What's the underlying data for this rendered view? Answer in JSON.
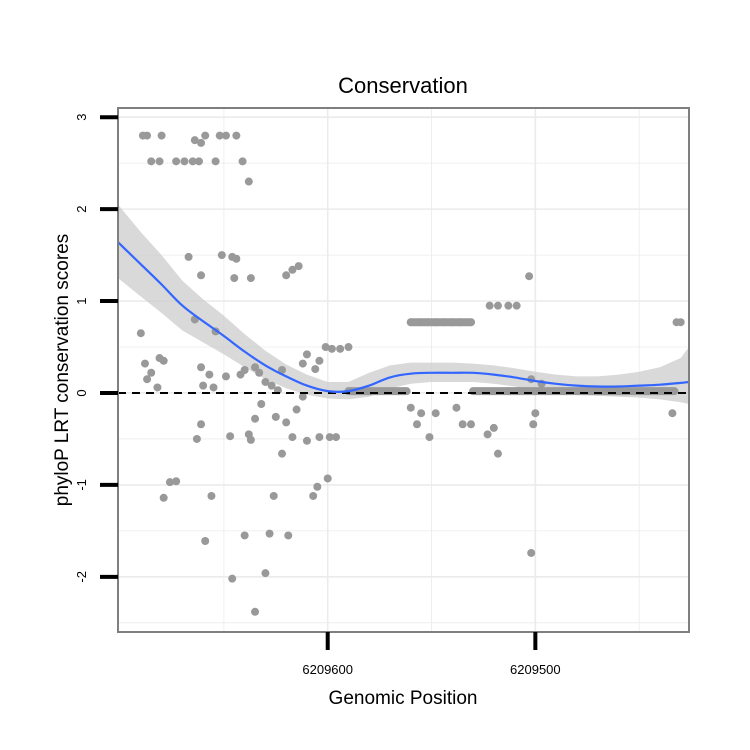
{
  "chart_data": {
    "type": "scatter",
    "title": "Conservation",
    "xlabel": "Genomic Position",
    "ylabel": "phyloP LRT conservation scores",
    "x_reversed": true,
    "xlim": [
      6209701,
      6209426
    ],
    "ylim": [
      -2.6,
      3.1
    ],
    "x_ticks": [
      6209600,
      6209500
    ],
    "x_tick_labels": [
      "6209600",
      "6209500"
    ],
    "y_ticks": [
      -2,
      -1,
      0,
      1,
      2,
      3
    ],
    "y_tick_labels": [
      "-2",
      "-1",
      "0",
      "1",
      "2",
      "3"
    ],
    "grid": true,
    "reference_line": {
      "y": 0,
      "style": "dashed"
    },
    "colors": {
      "points": "#999999",
      "smooth_line": "#3366ff",
      "confidence_band": "#cccccc",
      "grid": "#ebebeb",
      "panel_border": "#7f7f7f",
      "reference_line": "#000000"
    },
    "series": [
      {
        "name": "phyloP scores",
        "kind": "points",
        "points": [
          [
            6209689,
            2.8
          ],
          [
            6209687,
            2.8
          ],
          [
            6209680,
            2.8
          ],
          [
            6209685,
            2.52
          ],
          [
            6209681,
            2.52
          ],
          [
            6209673,
            2.52
          ],
          [
            6209669,
            2.52
          ],
          [
            6209665,
            2.52
          ],
          [
            6209664,
            2.75
          ],
          [
            6209661,
            2.72
          ],
          [
            6209659,
            2.8
          ],
          [
            6209652,
            2.8
          ],
          [
            6209649,
            2.8
          ],
          [
            6209644,
            2.8
          ],
          [
            6209662,
            2.52
          ],
          [
            6209654,
            2.52
          ],
          [
            6209641,
            2.52
          ],
          [
            6209638,
            2.3
          ],
          [
            6209690,
            0.65
          ],
          [
            6209688,
            0.32
          ],
          [
            6209687,
            0.15
          ],
          [
            6209685,
            0.22
          ],
          [
            6209682,
            0.06
          ],
          [
            6209681,
            0.38
          ],
          [
            6209679,
            0.35
          ],
          [
            6209667,
            1.48
          ],
          [
            6209664,
            0.8
          ],
          [
            6209661,
            1.28
          ],
          [
            6209661,
            0.28
          ],
          [
            6209660,
            0.08
          ],
          [
            6209657,
            0.2
          ],
          [
            6209655,
            0.06
          ],
          [
            6209654,
            0.67
          ],
          [
            6209651,
            1.5
          ],
          [
            6209649,
            0.18
          ],
          [
            6209646,
            1.48
          ],
          [
            6209644,
            1.46
          ],
          [
            6209645,
            1.25
          ],
          [
            6209642,
            0.2
          ],
          [
            6209640,
            0.25
          ],
          [
            6209637,
            1.25
          ],
          [
            6209635,
            0.28
          ],
          [
            6209633,
            0.22
          ],
          [
            6209630,
            0.12
          ],
          [
            6209627,
            0.08
          ],
          [
            6209624,
            0.03
          ],
          [
            6209622,
            0.25
          ],
          [
            6209620,
            1.28
          ],
          [
            6209617,
            1.34
          ],
          [
            6209614,
            1.38
          ],
          [
            6209612,
            0.32
          ],
          [
            6209610,
            0.42
          ],
          [
            6209606,
            0.26
          ],
          [
            6209604,
            0.35
          ],
          [
            6209601,
            0.5
          ],
          [
            6209598,
            0.48
          ],
          [
            6209594,
            0.48
          ],
          [
            6209590,
            0.5
          ],
          [
            6209679,
            -1.14
          ],
          [
            6209676,
            -0.97
          ],
          [
            6209673,
            -0.96
          ],
          [
            6209663,
            -0.5
          ],
          [
            6209661,
            -0.34
          ],
          [
            6209659,
            -1.61
          ],
          [
            6209656,
            -1.12
          ],
          [
            6209647,
            -0.47
          ],
          [
            6209646,
            -2.02
          ],
          [
            6209640,
            -1.55
          ],
          [
            6209638,
            -0.45
          ],
          [
            6209637,
            -0.51
          ],
          [
            6209635,
            -0.28
          ],
          [
            6209635,
            -2.38
          ],
          [
            6209632,
            -0.12
          ],
          [
            6209630,
            -1.96
          ],
          [
            6209628,
            -1.53
          ],
          [
            6209626,
            -1.12
          ],
          [
            6209625,
            -0.26
          ],
          [
            6209622,
            -0.66
          ],
          [
            6209620,
            -0.32
          ],
          [
            6209619,
            -1.55
          ],
          [
            6209617,
            -0.48
          ],
          [
            6209615,
            -0.18
          ],
          [
            6209612,
            -0.04
          ],
          [
            6209610,
            -0.52
          ],
          [
            6209607,
            -1.12
          ],
          [
            6209605,
            -1.02
          ],
          [
            6209604,
            -0.48
          ],
          [
            6209600,
            -0.93
          ],
          [
            6209599,
            -0.48
          ],
          [
            6209596,
            -0.48
          ],
          [
            6209560,
            0.77
          ],
          [
            6209556,
            0.77
          ],
          [
            6209552,
            0.77
          ],
          [
            6209548,
            0.77
          ],
          [
            6209544,
            0.77
          ],
          [
            6209540,
            0.77
          ],
          [
            6209536,
            0.77
          ],
          [
            6209531,
            0.77
          ],
          [
            6209560,
            -0.16
          ],
          [
            6209557,
            -0.34
          ],
          [
            6209555,
            -0.22
          ],
          [
            6209551,
            -0.48
          ],
          [
            6209548,
            -0.22
          ],
          [
            6209538,
            -0.16
          ],
          [
            6209535,
            -0.34
          ],
          [
            6209531,
            -0.34
          ],
          [
            6209523,
            -0.45
          ],
          [
            6209520,
            -0.38
          ],
          [
            6209518,
            -0.66
          ],
          [
            6209513,
            0.02
          ],
          [
            6209508,
            0.02
          ],
          [
            6209522,
            0.95
          ],
          [
            6209518,
            0.95
          ],
          [
            6209513,
            0.95
          ],
          [
            6209509,
            0.95
          ],
          [
            6209503,
            1.27
          ],
          [
            6209501,
            -0.34
          ],
          [
            6209500,
            -0.22
          ],
          [
            6209502,
            -1.74
          ],
          [
            6209502,
            0.15
          ],
          [
            6209497,
            0.1
          ],
          [
            6209432,
            0.77
          ],
          [
            6209430,
            0.77
          ],
          [
            6209434,
            -0.22
          ]
        ],
        "flat_runs": [
          {
            "y": 0.02,
            "x": [
              6209590,
              6209562
            ]
          },
          {
            "y": 0.02,
            "x": [
              6209530,
              6209433
            ]
          },
          {
            "y": 0.77,
            "x": [
              6209560,
              6209531
            ]
          }
        ]
      },
      {
        "name": "loess smooth",
        "kind": "line",
        "x": [
          6209701,
          6209690,
          6209680,
          6209670,
          6209660,
          6209650,
          6209640,
          6209630,
          6209620,
          6209610,
          6209600,
          6209590,
          6209580,
          6209570,
          6209560,
          6209550,
          6209540,
          6209530,
          6209520,
          6209510,
          6209500,
          6209490,
          6209480,
          6209470,
          6209460,
          6209450,
          6209440,
          6209430,
          6209426
        ],
        "y": [
          1.64,
          1.4,
          1.18,
          0.95,
          0.78,
          0.62,
          0.45,
          0.3,
          0.18,
          0.08,
          0.02,
          0.02,
          0.08,
          0.17,
          0.21,
          0.22,
          0.22,
          0.22,
          0.2,
          0.17,
          0.13,
          0.1,
          0.08,
          0.07,
          0.07,
          0.08,
          0.09,
          0.11,
          0.12
        ],
        "ci_lower": [
          1.25,
          1.05,
          0.87,
          0.68,
          0.55,
          0.42,
          0.28,
          0.15,
          0.05,
          -0.02,
          -0.06,
          -0.07,
          -0.04,
          0.05,
          0.1,
          0.12,
          0.12,
          0.12,
          0.1,
          0.07,
          0.03,
          0.0,
          -0.02,
          -0.03,
          -0.04,
          -0.05,
          -0.07,
          -0.1,
          -0.12
        ],
        "ci_upper": [
          2.05,
          1.75,
          1.5,
          1.22,
          1.02,
          0.84,
          0.64,
          0.46,
          0.31,
          0.2,
          0.12,
          0.12,
          0.22,
          0.3,
          0.33,
          0.33,
          0.33,
          0.32,
          0.3,
          0.27,
          0.23,
          0.2,
          0.18,
          0.18,
          0.2,
          0.23,
          0.28,
          0.38,
          0.5
        ]
      }
    ]
  }
}
